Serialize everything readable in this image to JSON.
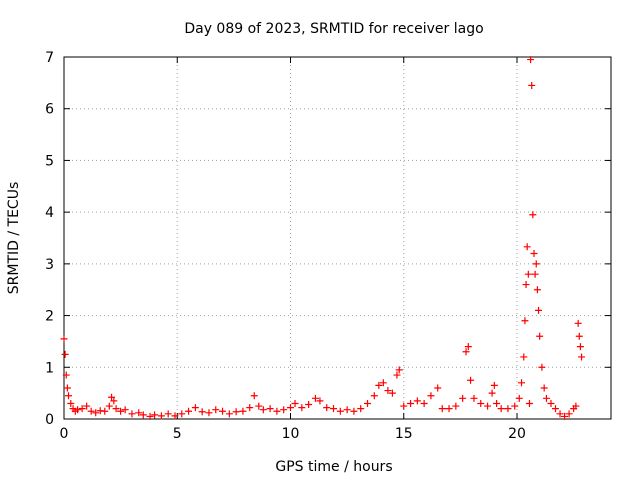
{
  "chart_data": {
    "type": "scatter",
    "title": "Day 089 of 2023, SRMTID for receiver lago",
    "xlabel": "GPS time / hours",
    "ylabel": "SRMTID / TECUs",
    "xlim": [
      0,
      24.15
    ],
    "ylim": [
      0,
      7
    ],
    "xticks": [
      0,
      5,
      10,
      15,
      20
    ],
    "yticks": [
      0,
      1,
      2,
      3,
      4,
      5,
      6,
      7
    ],
    "grid": true,
    "marker": "+",
    "series": [
      {
        "name": "SRMTID",
        "color": "#ff0000",
        "x": [
          0.0,
          0.05,
          0.1,
          0.15,
          0.2,
          0.3,
          0.4,
          0.5,
          0.6,
          0.8,
          1.0,
          1.2,
          1.4,
          1.6,
          1.8,
          2.0,
          2.1,
          2.2,
          2.3,
          2.5,
          2.7,
          3.0,
          3.3,
          3.5,
          3.8,
          4.0,
          4.3,
          4.6,
          4.9,
          5.2,
          5.5,
          5.8,
          6.1,
          6.4,
          6.7,
          7.0,
          7.3,
          7.6,
          7.9,
          8.2,
          8.4,
          8.6,
          8.8,
          9.1,
          9.4,
          9.7,
          10.0,
          10.2,
          10.5,
          10.8,
          11.1,
          11.3,
          11.6,
          11.9,
          12.2,
          12.5,
          12.8,
          13.1,
          13.4,
          13.7,
          13.9,
          14.1,
          14.3,
          14.5,
          14.7,
          14.8,
          15.0,
          15.3,
          15.6,
          15.9,
          16.2,
          16.5,
          16.7,
          17.0,
          17.3,
          17.6,
          17.75,
          17.85,
          17.95,
          18.1,
          18.4,
          18.7,
          18.9,
          19.0,
          19.1,
          19.3,
          19.6,
          19.9,
          20.1,
          20.2,
          20.3,
          20.35,
          20.4,
          20.45,
          20.5,
          20.55,
          20.6,
          20.65,
          20.7,
          20.75,
          20.8,
          20.85,
          20.9,
          20.95,
          21.0,
          21.1,
          21.2,
          21.3,
          21.5,
          21.7,
          21.9,
          22.1,
          22.3,
          22.5,
          22.6,
          22.7,
          22.75,
          22.8,
          22.85
        ],
        "y": [
          1.55,
          1.25,
          0.85,
          0.6,
          0.45,
          0.3,
          0.2,
          0.15,
          0.18,
          0.2,
          0.25,
          0.15,
          0.12,
          0.16,
          0.15,
          0.25,
          0.42,
          0.35,
          0.2,
          0.15,
          0.18,
          0.1,
          0.12,
          0.08,
          0.05,
          0.08,
          0.06,
          0.1,
          0.06,
          0.1,
          0.15,
          0.22,
          0.14,
          0.12,
          0.18,
          0.15,
          0.1,
          0.14,
          0.15,
          0.22,
          0.45,
          0.25,
          0.18,
          0.2,
          0.15,
          0.18,
          0.22,
          0.3,
          0.22,
          0.28,
          0.4,
          0.35,
          0.22,
          0.2,
          0.15,
          0.18,
          0.15,
          0.2,
          0.3,
          0.45,
          0.65,
          0.7,
          0.55,
          0.5,
          0.85,
          0.95,
          0.25,
          0.3,
          0.35,
          0.3,
          0.45,
          0.6,
          0.2,
          0.2,
          0.25,
          0.4,
          1.3,
          1.4,
          0.75,
          0.4,
          0.3,
          0.25,
          0.5,
          0.65,
          0.3,
          0.2,
          0.2,
          0.25,
          0.4,
          0.7,
          1.2,
          1.9,
          2.6,
          3.33,
          2.8,
          0.3,
          6.95,
          6.45,
          3.95,
          3.2,
          2.8,
          3.0,
          2.5,
          2.1,
          1.6,
          1.0,
          0.6,
          0.4,
          0.3,
          0.2,
          0.1,
          0.05,
          0.1,
          0.2,
          0.25,
          1.85,
          1.6,
          1.4,
          1.2
        ]
      }
    ]
  }
}
